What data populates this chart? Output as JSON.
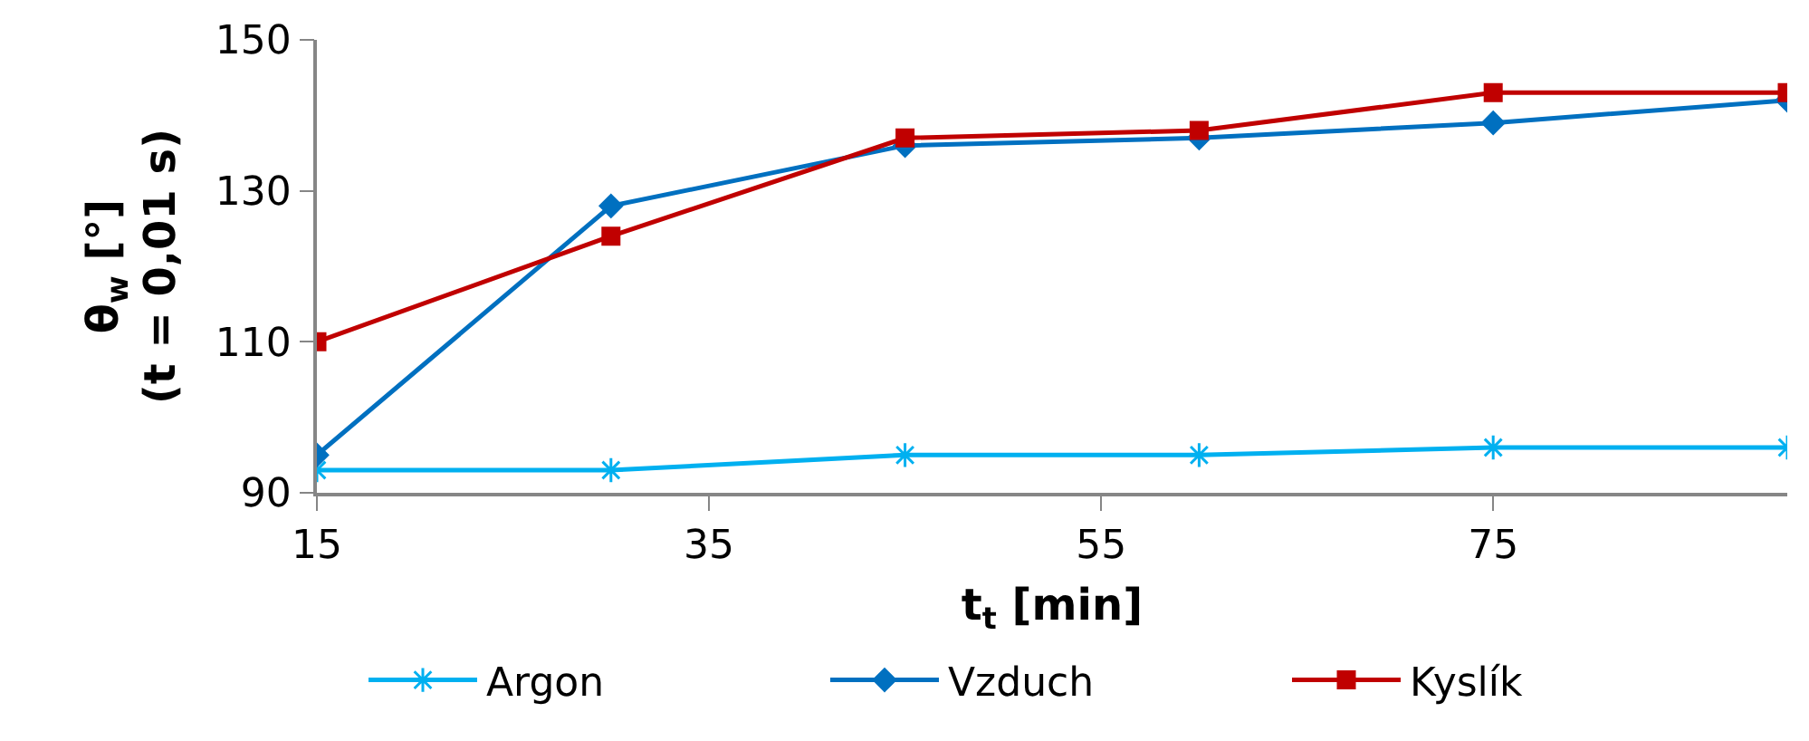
{
  "chart_data": {
    "type": "line",
    "xlabel": "t$_{t}$ [min]",
    "ylabel": "θ$_{w}$ [°]\n(t = 0,01 s)",
    "x": [
      15,
      30,
      45,
      60,
      75,
      90
    ],
    "series": [
      {
        "name": "Argon",
        "color": "#00b0f0",
        "marker": "cross",
        "values": [
          93,
          93,
          95,
          95,
          96,
          96
        ]
      },
      {
        "name": "Vzduch",
        "color": "#0070c0",
        "marker": "diamond",
        "values": [
          95,
          128,
          136,
          137,
          139,
          142
        ]
      },
      {
        "name": "Kyslík",
        "color": "#c00000",
        "marker": "square",
        "values": [
          110,
          124,
          137,
          138,
          143,
          143
        ]
      }
    ],
    "xlim": [
      15,
      90
    ],
    "xticks": [
      15,
      35,
      55,
      75
    ],
    "ylim": [
      90,
      150
    ],
    "yticks": [
      90,
      110,
      130,
      150
    ],
    "legend": "bottom",
    "line_style": "solid"
  }
}
